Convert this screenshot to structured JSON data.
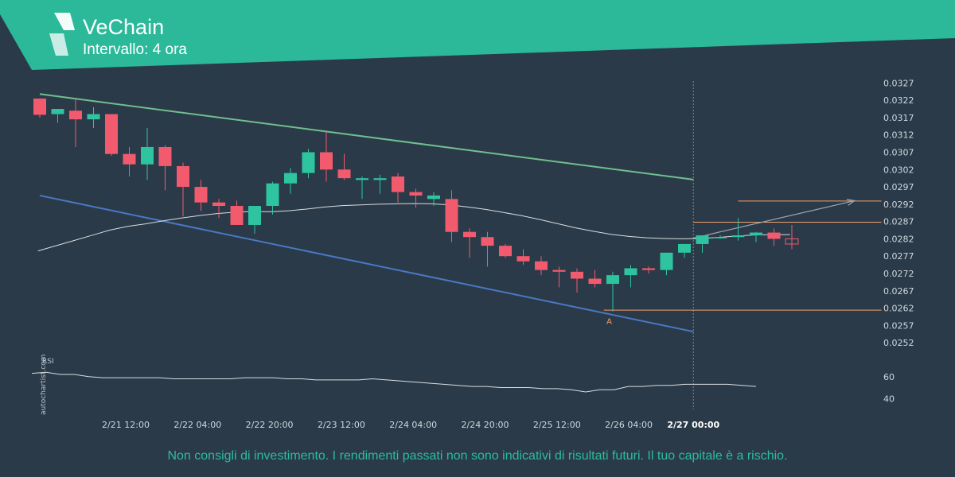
{
  "header": {
    "title": "VeChain",
    "subtitle": "Intervallo: 4 ora",
    "band_color": "#2bb99a"
  },
  "watermark": "autochartist.com",
  "disclaimer": "Non consigli di investimento. I rendimenti passati non sono indicativi di risultati futuri. Il tuo capitale è a rischio.",
  "chart_data": {
    "type": "candlestick",
    "colors": {
      "up": "#2ec4a0",
      "down": "#f25a6e",
      "background": "#2b3a48"
    },
    "y_ticks": [
      "0.0327",
      "0.0322",
      "0.0317",
      "0.0312",
      "0.0307",
      "0.0302",
      "0.0297",
      "0.0292",
      "0.0287",
      "0.0282",
      "0.0277",
      "0.0272",
      "0.0267",
      "0.0262",
      "0.0257",
      "0.0252"
    ],
    "ylim": [
      0.02495,
      0.0328
    ],
    "x_ticks": [
      "2/21 12:00",
      "2/22 04:00",
      "2/22 20:00",
      "2/23 12:00",
      "2/24 04:00",
      "2/24 20:00",
      "2/25 12:00",
      "2/26 04:00",
      "2/27 00:00"
    ],
    "highlight_x_tick": "2/27 00:00",
    "candles": [
      [
        0.03225,
        0.03225,
        0.0317,
        0.03178
      ],
      [
        0.0318,
        0.03195,
        0.03155,
        0.03195
      ],
      [
        0.0319,
        0.03225,
        0.03085,
        0.03165
      ],
      [
        0.03165,
        0.032,
        0.0314,
        0.0318
      ],
      [
        0.0318,
        0.0318,
        0.0306,
        0.03065
      ],
      [
        0.03065,
        0.03085,
        0.03,
        0.03035
      ],
      [
        0.03035,
        0.0314,
        0.0299,
        0.03085
      ],
      [
        0.03085,
        0.0309,
        0.0296,
        0.0303
      ],
      [
        0.0303,
        0.0304,
        0.02885,
        0.0297
      ],
      [
        0.0297,
        0.0299,
        0.029,
        0.02925
      ],
      [
        0.02925,
        0.02935,
        0.0288,
        0.02915
      ],
      [
        0.02915,
        0.0293,
        0.02865,
        0.0286
      ],
      [
        0.0286,
        0.0291,
        0.02835,
        0.02915
      ],
      [
        0.02915,
        0.02985,
        0.0289,
        0.0298
      ],
      [
        0.0298,
        0.03025,
        0.0295,
        0.0301
      ],
      [
        0.0301,
        0.0308,
        0.02995,
        0.0307
      ],
      [
        0.0307,
        0.0313,
        0.02985,
        0.0302
      ],
      [
        0.0302,
        0.03065,
        0.0299,
        0.02995
      ],
      [
        0.0299,
        0.03,
        0.02935,
        0.02995
      ],
      [
        0.0299,
        0.03005,
        0.0295,
        0.02995
      ],
      [
        0.03,
        0.0301,
        0.02925,
        0.02955
      ],
      [
        0.02955,
        0.02965,
        0.0291,
        0.02945
      ],
      [
        0.02935,
        0.02955,
        0.02915,
        0.02945
      ],
      [
        0.02935,
        0.0296,
        0.0281,
        0.0284
      ],
      [
        0.0284,
        0.0285,
        0.02765,
        0.02825
      ],
      [
        0.02825,
        0.0284,
        0.0274,
        0.028
      ],
      [
        0.028,
        0.02805,
        0.02765,
        0.0277
      ],
      [
        0.0277,
        0.0279,
        0.02745,
        0.02755
      ],
      [
        0.02755,
        0.0277,
        0.02715,
        0.0273
      ],
      [
        0.0273,
        0.0274,
        0.0268,
        0.02725
      ],
      [
        0.02725,
        0.02735,
        0.02665,
        0.02705
      ],
      [
        0.02705,
        0.0273,
        0.0268,
        0.0269
      ],
      [
        0.0269,
        0.02725,
        0.0261,
        0.02715
      ],
      [
        0.02715,
        0.02745,
        0.0268,
        0.02735
      ],
      [
        0.02735,
        0.0274,
        0.0272,
        0.0273
      ],
      [
        0.0273,
        0.0278,
        0.02715,
        0.0278
      ],
      [
        0.0278,
        0.028,
        0.02765,
        0.02805
      ],
      [
        0.02805,
        0.0283,
        0.0278,
        0.0283
      ],
      [
        0.02825,
        0.0283,
        0.0282,
        0.02825
      ],
      [
        0.02825,
        0.0288,
        0.02815,
        0.0283
      ],
      [
        0.0283,
        0.0284,
        0.0281,
        0.02838
      ],
      [
        0.02838,
        0.0285,
        0.028,
        0.0282
      ],
      [
        0.0282,
        0.0286,
        0.0279,
        0.02805
      ]
    ],
    "moving_average": [
      0.02785,
      0.028,
      0.02815,
      0.0283,
      0.02845,
      0.02856,
      0.02863,
      0.02872,
      0.0288,
      0.02887,
      0.02893,
      0.02897,
      0.02899,
      0.02898,
      0.02901,
      0.02906,
      0.02912,
      0.02916,
      0.02918,
      0.0292,
      0.02921,
      0.02922,
      0.02921,
      0.02918,
      0.02912,
      0.02905,
      0.02896,
      0.02887,
      0.02876,
      0.02864,
      0.02852,
      0.02842,
      0.02833,
      0.02827,
      0.02823,
      0.02821,
      0.0282,
      0.02821,
      0.02824,
      0.02828,
      0.02831,
      0.02832,
      0.02832
    ],
    "channel_upper": {
      "color": "#6fbf8e",
      "from": [
        0,
        0.03238
      ],
      "to": [
        36.5,
        0.02991
      ]
    },
    "channel_lower": {
      "color": "#4a78c4",
      "from": [
        0,
        0.02945
      ],
      "to": [
        36.5,
        0.02552
      ]
    },
    "forecast_arrow": {
      "color": "#9aa6b0",
      "from": [
        36.5,
        0.02822
      ],
      "to": [
        45.5,
        0.0293
      ]
    },
    "resistance_lines": [
      {
        "color": "#f2a06a",
        "from": 36.5,
        "to": 47.0,
        "value": 0.02868
      },
      {
        "color": "#f2a06a",
        "from": 39.0,
        "to": 47.0,
        "value": 0.02929
      }
    ],
    "support_line": {
      "color": "#f2a06a",
      "from": 31.5,
      "to": 47.0,
      "value": 0.02614
    },
    "point_label": {
      "text": "A",
      "index": 31.8,
      "value": 0.02595,
      "color": "#f2a06a"
    },
    "vertical_marker_index": 36.5,
    "rsi": {
      "label": "RSI",
      "levels": [
        "60",
        "40"
      ],
      "range": [
        30,
        70
      ],
      "values": [
        63,
        64,
        62,
        62,
        60,
        59,
        59,
        59,
        59,
        59,
        58,
        58,
        58,
        58,
        58,
        59,
        59,
        59,
        58,
        58,
        57,
        57,
        57,
        57,
        58,
        57,
        56,
        55,
        54,
        53,
        52,
        51,
        51,
        50,
        50,
        50,
        49,
        49,
        48,
        46,
        48,
        48,
        51,
        51,
        52,
        52,
        53,
        53,
        53,
        53,
        52,
        51
      ]
    }
  }
}
